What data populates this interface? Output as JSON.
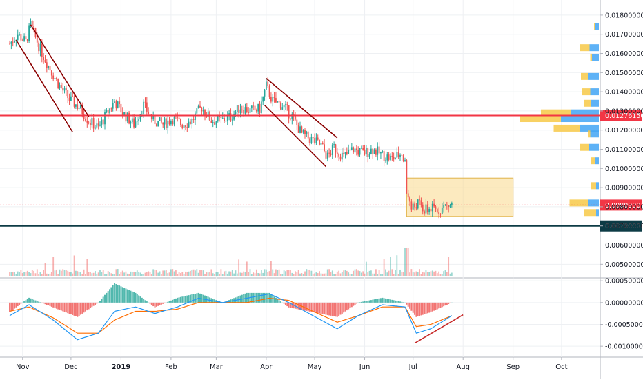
{
  "chart_data": {
    "type": "candlestick",
    "main_pane": {
      "y_axis_ticks": [
        "0.01800000",
        "0.01700000",
        "0.01600000",
        "0.01500000",
        "0.01400000",
        "0.01300000",
        "0.01200000",
        "0.01100000",
        "0.01000000",
        "0.00900000",
        "0.00800000",
        "0.00700000",
        "0.00600000",
        "0.00500000"
      ],
      "ylim": [
        0.0044,
        0.0185
      ],
      "price_labels": [
        {
          "text": "0.01276156",
          "value": 0.01276156,
          "color": "#f23645",
          "line_style": "solid"
        },
        {
          "text": "0.00809001",
          "value": 0.00809001,
          "color": "#f23645",
          "line_style": "dotted"
        },
        {
          "text": "0.00700000",
          "value": 0.007,
          "color": "#0d3b45",
          "line_style": "solid"
        }
      ],
      "support_resistance": [
        {
          "value": 0.01276156,
          "color": "#f23645"
        },
        {
          "value": 0.007,
          "color": "#0d3b45"
        }
      ],
      "consolidation_box": {
        "x_from": "2019-06-27",
        "x_to": "2019-09-01",
        "y_from": 0.0075,
        "y_to": 0.0095
      },
      "trend_channels": [
        {
          "from": {
            "x": "2018-10-28",
            "y": 0.0167
          },
          "to": {
            "x": "2018-12-02",
            "y": 0.0119
          }
        },
        {
          "from": {
            "x": "2018-11-06",
            "y": 0.0175
          },
          "to": {
            "x": "2018-12-12",
            "y": 0.0127
          }
        },
        {
          "from": {
            "x": "2019-03-31",
            "y": 0.0133
          },
          "to": {
            "x": "2019-05-08",
            "y": 0.0101
          }
        },
        {
          "from": {
            "x": "2019-04-01",
            "y": 0.0147
          },
          "to": {
            "x": "2019-05-15",
            "y": 0.0116
          }
        }
      ],
      "price_path": [
        [
          "2018-10-24",
          0.0165
        ],
        [
          "2018-10-29",
          0.017
        ],
        [
          "2018-11-03",
          0.0166
        ],
        [
          "2018-11-06",
          0.0175
        ],
        [
          "2018-11-12",
          0.0162
        ],
        [
          "2018-11-18",
          0.0152
        ],
        [
          "2018-11-24",
          0.0143
        ],
        [
          "2018-11-30",
          0.0136
        ],
        [
          "2018-12-06",
          0.0132
        ],
        [
          "2018-12-12",
          0.0125
        ],
        [
          "2018-12-18",
          0.0121
        ],
        [
          "2018-12-22",
          0.0127
        ],
        [
          "2018-12-28",
          0.0135
        ],
        [
          "2019-01-03",
          0.0128
        ],
        [
          "2019-01-09",
          0.0123
        ],
        [
          "2019-01-15",
          0.0133
        ],
        [
          "2019-01-21",
          0.0125
        ],
        [
          "2019-01-27",
          0.0123
        ],
        [
          "2019-02-02",
          0.0126
        ],
        [
          "2019-02-08",
          0.0123
        ],
        [
          "2019-02-14",
          0.0125
        ],
        [
          "2019-02-20",
          0.0132
        ],
        [
          "2019-02-26",
          0.0125
        ],
        [
          "2019-03-04",
          0.0125
        ],
        [
          "2019-03-10",
          0.0127
        ],
        [
          "2019-03-16",
          0.0132
        ],
        [
          "2019-03-22",
          0.013
        ],
        [
          "2019-03-28",
          0.0131
        ],
        [
          "2019-04-01",
          0.0143
        ],
        [
          "2019-04-05",
          0.0135
        ],
        [
          "2019-04-11",
          0.0133
        ],
        [
          "2019-04-17",
          0.0127
        ],
        [
          "2019-04-23",
          0.0118
        ],
        [
          "2019-04-29",
          0.0115
        ],
        [
          "2019-05-05",
          0.0112
        ],
        [
          "2019-05-09",
          0.0106
        ],
        [
          "2019-05-13",
          0.0111
        ],
        [
          "2019-05-19",
          0.0106
        ],
        [
          "2019-05-25",
          0.011
        ],
        [
          "2019-05-31",
          0.0108
        ],
        [
          "2019-06-06",
          0.011
        ],
        [
          "2019-06-12",
          0.0107
        ],
        [
          "2019-06-18",
          0.0105
        ],
        [
          "2019-06-24",
          0.0108
        ],
        [
          "2019-06-26",
          0.0103
        ],
        [
          "2019-06-27",
          0.0088
        ],
        [
          "2019-06-30",
          0.0079
        ],
        [
          "2019-07-04",
          0.0082
        ],
        [
          "2019-07-08",
          0.0078
        ],
        [
          "2019-07-12",
          0.0079
        ],
        [
          "2019-07-16",
          0.0078
        ],
        [
          "2019-07-20",
          0.008
        ],
        [
          "2019-07-25",
          0.0081
        ]
      ]
    },
    "volume_profile": [
      {
        "y": 0.0174,
        "buy": 4,
        "sell": 10
      },
      {
        "y": 0.0163,
        "buy": 28,
        "sell": 27
      },
      {
        "y": 0.0158,
        "buy": 5,
        "sell": 20
      },
      {
        "y": 0.0148,
        "buy": 22,
        "sell": 30
      },
      {
        "y": 0.014,
        "buy": 25,
        "sell": 25
      },
      {
        "y": 0.0134,
        "buy": 20,
        "sell": 22
      },
      {
        "y": 0.0129,
        "buy": 88,
        "sell": 80
      },
      {
        "y": 0.0126,
        "buy": 120,
        "sell": 110
      },
      {
        "y": 0.0121,
        "buy": 75,
        "sell": 56
      },
      {
        "y": 0.0118,
        "buy": 6,
        "sell": 25
      },
      {
        "y": 0.0111,
        "buy": 28,
        "sell": 28
      },
      {
        "y": 0.0104,
        "buy": 10,
        "sell": 12
      },
      {
        "y": 0.0091,
        "buy": 14,
        "sell": 8
      },
      {
        "y": 0.0082,
        "buy": 55,
        "sell": 30
      },
      {
        "y": 0.0077,
        "buy": 36,
        "sell": 8
      }
    ],
    "macd_pane": {
      "y_axis_ticks": [
        "0.00050000",
        "0.00000000",
        "-0.00050000",
        "-0.00100000"
      ],
      "ylim": [
        -0.00125,
        0.00055
      ],
      "macd_line": [
        [
          "2018-10-24",
          -0.0003
        ],
        [
          "2018-11-05",
          -5e-05
        ],
        [
          "2018-11-20",
          -0.0004
        ],
        [
          "2018-12-05",
          -0.00085
        ],
        [
          "2018-12-18",
          -0.0007
        ],
        [
          "2018-12-28",
          -0.0002
        ],
        [
          "2019-01-10",
          -0.0001
        ],
        [
          "2019-01-22",
          -0.00025
        ],
        [
          "2019-02-05",
          -0.0001
        ],
        [
          "2019-02-18",
          0.0001
        ],
        [
          "2019-03-05",
          0.0
        ],
        [
          "2019-03-20",
          0.0001
        ],
        [
          "2019-04-03",
          0.0002
        ],
        [
          "2019-04-15",
          0.0
        ],
        [
          "2019-04-30",
          -0.0003
        ],
        [
          "2019-05-15",
          -0.0006
        ],
        [
          "2019-05-28",
          -0.0003
        ],
        [
          "2019-06-12",
          -5e-05
        ],
        [
          "2019-06-26",
          -0.0001
        ],
        [
          "2019-07-03",
          -0.0007
        ],
        [
          "2019-07-12",
          -0.0006
        ],
        [
          "2019-07-25",
          -0.0003
        ]
      ],
      "signal_line": [
        [
          "2018-10-24",
          -0.0002
        ],
        [
          "2018-11-05",
          -0.0001
        ],
        [
          "2018-11-20",
          -0.00035
        ],
        [
          "2018-12-05",
          -0.0007
        ],
        [
          "2018-12-18",
          -0.0007
        ],
        [
          "2018-12-28",
          -0.0004
        ],
        [
          "2019-01-10",
          -0.0002
        ],
        [
          "2019-01-22",
          -0.0002
        ],
        [
          "2019-02-05",
          -0.00015
        ],
        [
          "2019-02-18",
          0.0
        ],
        [
          "2019-03-05",
          0.0
        ],
        [
          "2019-03-20",
          0.0
        ],
        [
          "2019-04-03",
          0.0001
        ],
        [
          "2019-04-15",
          5e-05
        ],
        [
          "2019-04-30",
          -0.0002
        ],
        [
          "2019-05-15",
          -0.00045
        ],
        [
          "2019-05-28",
          -0.0003
        ],
        [
          "2019-06-12",
          -0.0001
        ],
        [
          "2019-06-26",
          -0.0001
        ],
        [
          "2019-07-03",
          -0.00055
        ],
        [
          "2019-07-12",
          -0.0005
        ],
        [
          "2019-07-25",
          -0.0003
        ]
      ],
      "trendline": {
        "from": {
          "x": "2019-07-02",
          "y": -0.00093
        },
        "to": {
          "x": "2019-08-01",
          "y": -0.00028
        }
      }
    },
    "x_axis_ticks": [
      {
        "label": "Nov",
        "date": "2018-11-01"
      },
      {
        "label": "Dec",
        "date": "2018-12-01"
      },
      {
        "label": "2019",
        "date": "2019-01-01"
      },
      {
        "label": "Feb",
        "date": "2019-02-01"
      },
      {
        "label": "Mar",
        "date": "2019-03-01"
      },
      {
        "label": "Apr",
        "date": "2019-04-01"
      },
      {
        "label": "May",
        "date": "2019-05-01"
      },
      {
        "label": "Jun",
        "date": "2019-06-01"
      },
      {
        "label": "Jul",
        "date": "2019-07-01"
      },
      {
        "label": "Aug",
        "date": "2019-08-01"
      },
      {
        "label": "Sep",
        "date": "2019-09-01"
      },
      {
        "label": "Oct",
        "date": "2019-10-01"
      }
    ],
    "xlim": [
      "2018-10-18",
      "2019-10-25"
    ],
    "colors": {
      "up": "#26a69a",
      "down": "#ef5350",
      "macd": "#2196f3",
      "signal": "#ff6d00",
      "box_fill": "#f9d98b",
      "box_stroke": "#e0b34a",
      "channel": "#8b0000",
      "vp_buy": "#f7c948",
      "vp_sell": "#42a5f5"
    }
  }
}
